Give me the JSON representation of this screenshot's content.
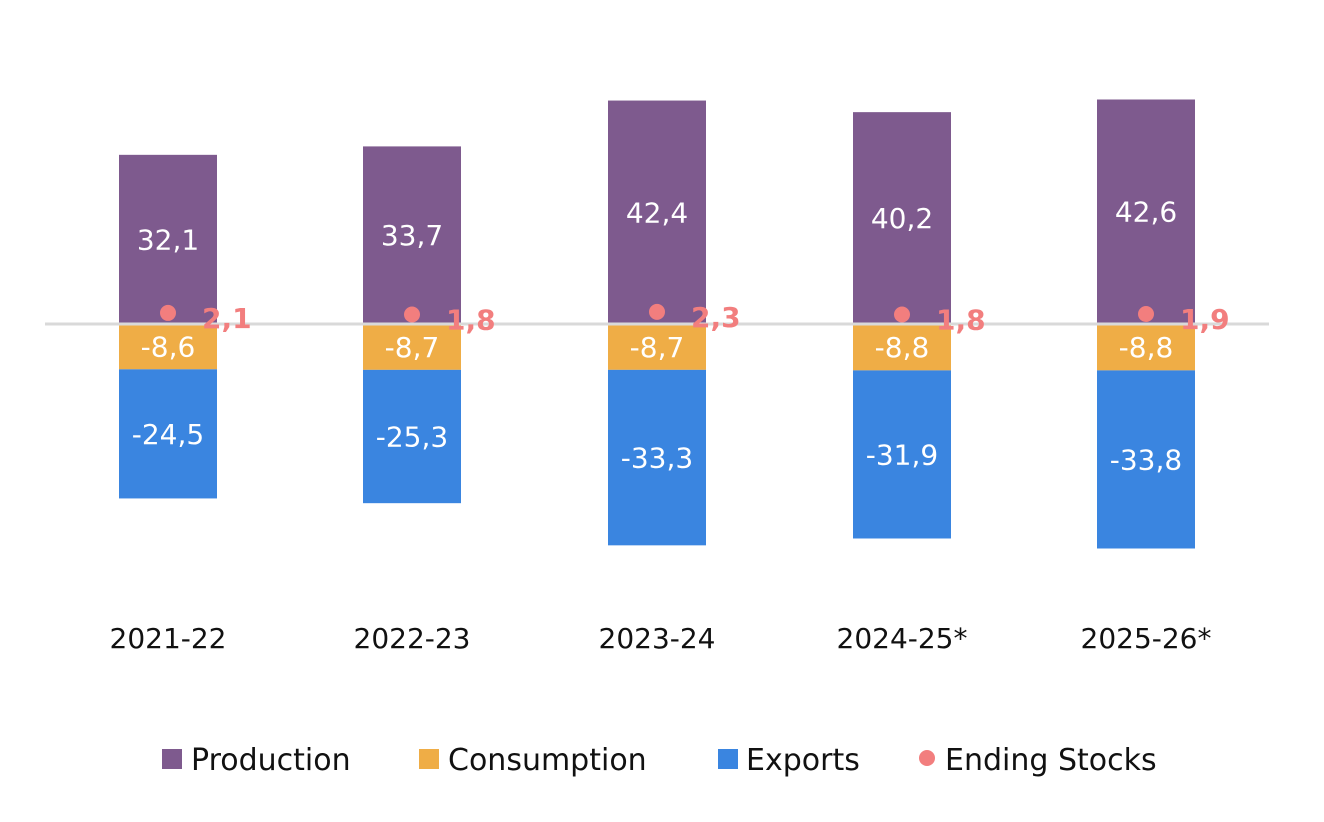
{
  "chart_data": {
    "type": "bar",
    "stacked": true,
    "categories": [
      "2021-22",
      "2022-23",
      "2023-24",
      "2024-25*",
      "2025-26*"
    ],
    "series": [
      {
        "name": "Production",
        "kind": "bar",
        "color": "#7E5A8E",
        "values": [
          32.1,
          33.7,
          42.4,
          40.2,
          42.6
        ],
        "labels": [
          "32,1",
          "33,7",
          "42,4",
          "40,2",
          "42,6"
        ]
      },
      {
        "name": "Consumption",
        "kind": "bar",
        "color": "#EFAD46",
        "values": [
          -8.6,
          -8.7,
          -8.7,
          -8.8,
          -8.8
        ],
        "labels": [
          "-8,6",
          "-8,7",
          "-8,7",
          "-8,8",
          "-8,8"
        ]
      },
      {
        "name": "Exports",
        "kind": "bar",
        "color": "#3A85E0",
        "values": [
          -24.5,
          -25.3,
          -33.3,
          -31.9,
          -33.8
        ],
        "labels": [
          "-24,5",
          "-25,3",
          "-33,3",
          "-31,9",
          "-33,8"
        ]
      },
      {
        "name": "Ending Stocks",
        "kind": "point",
        "color": "#F27E7E",
        "values": [
          2.1,
          1.8,
          2.3,
          1.8,
          1.9
        ],
        "labels": [
          "2,1",
          "1,8",
          "2,3",
          "1,8",
          "1,9"
        ]
      }
    ],
    "ylim": [
      -50,
      60
    ],
    "grid": false,
    "legend": "bottom"
  }
}
